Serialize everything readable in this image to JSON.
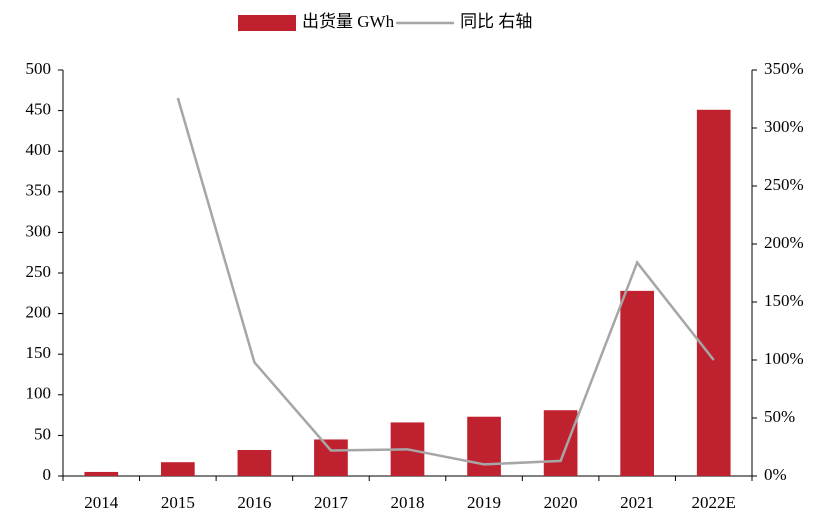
{
  "chart_data": {
    "type": "bar",
    "categories": [
      "2014",
      "2015",
      "2016",
      "2017",
      "2018",
      "2019",
      "2020",
      "2021",
      "2022E"
    ],
    "series": [
      {
        "name": "出货量 GWh",
        "type": "bar",
        "color": "#c0212f",
        "values": [
          5,
          17,
          32,
          45,
          66,
          73,
          81,
          228,
          451
        ]
      },
      {
        "name": "同比 右轴",
        "type": "line",
        "axis": "y2",
        "color": "#a6a6a6",
        "values": [
          null,
          326,
          98,
          22,
          23,
          10,
          13,
          184,
          100
        ]
      }
    ],
    "ylim": [
      0,
      500
    ],
    "yticks": [
      0,
      50,
      100,
      150,
      200,
      250,
      300,
      350,
      400,
      450,
      500
    ],
    "y2lim": [
      0,
      350
    ],
    "y2ticks": [
      {
        "value": 0,
        "label": "0%"
      },
      {
        "value": 50,
        "label": "50%"
      },
      {
        "value": 100,
        "label": "100%"
      },
      {
        "value": 150,
        "label": "150%"
      },
      {
        "value": 200,
        "label": "200%"
      },
      {
        "value": 250,
        "label": "250%"
      },
      {
        "value": 300,
        "label": "300%"
      },
      {
        "value": 350,
        "label": "350%"
      }
    ],
    "legend": "top"
  }
}
